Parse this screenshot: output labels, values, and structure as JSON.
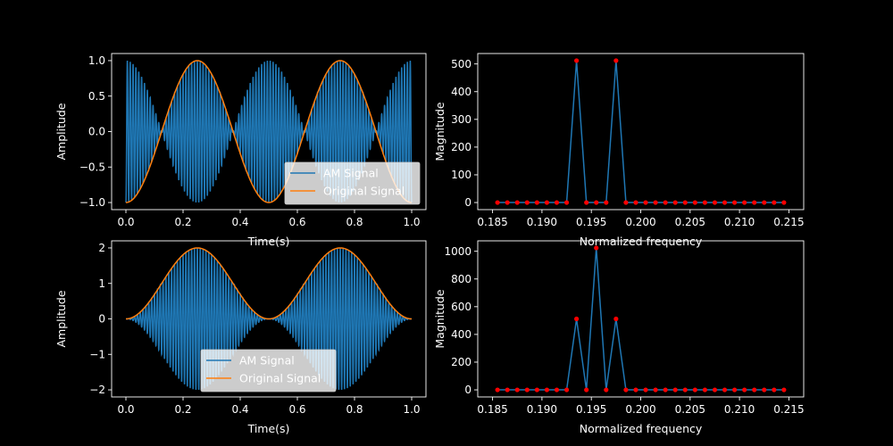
{
  "chart_data": [
    {
      "id": "time-am",
      "type": "line",
      "xlabel": "Time(s)",
      "ylabel": "Amplitude",
      "xlim": [
        -0.05,
        1.05
      ],
      "ylim": [
        -1.1,
        1.1
      ],
      "xticks": [
        0.0,
        0.2,
        0.4,
        0.6,
        0.8,
        1.0
      ],
      "xtick_labels": [
        "0.0",
        "0.2",
        "0.4",
        "0.6",
        "0.8",
        "1.0"
      ],
      "yticks": [
        -1.0,
        -0.5,
        0.0,
        0.5,
        1.0
      ],
      "ytick_labels": [
        "−1.0",
        "−0.5",
        "0.0",
        "0.5",
        "1.0"
      ],
      "legend": {
        "position": "lower-right",
        "entries": [
          "AM Signal",
          "Original Signal"
        ]
      },
      "series": [
        {
          "name": "AM Signal",
          "color": "#1f77b4",
          "description": "cos(2π·100·t)·sin(2π·2·t − π/2) dense carrier, envelope |sin(2π·2·t − π/2)|",
          "envelope_x": [
            0.0,
            0.125,
            0.25,
            0.375,
            0.5,
            0.625,
            0.75,
            0.875,
            1.0
          ],
          "envelope_y": [
            1.0,
            0.0,
            1.0,
            0.0,
            1.0,
            0.0,
            1.0,
            0.0,
            1.0
          ]
        },
        {
          "name": "Original Signal",
          "color": "#ff7f0e",
          "x": [
            0.0,
            0.125,
            0.25,
            0.375,
            0.5,
            0.625,
            0.75,
            0.875,
            1.0
          ],
          "y": [
            -1.0,
            0.0,
            1.0,
            0.0,
            -1.0,
            0.0,
            1.0,
            0.0,
            -1.0
          ]
        }
      ]
    },
    {
      "id": "freq-am",
      "type": "line",
      "xlabel": "Normalized frequency",
      "ylabel": "Magnitude",
      "xlim": [
        0.1835,
        0.2165
      ],
      "ylim": [
        -25.6,
        537.6
      ],
      "xticks": [
        0.185,
        0.19,
        0.195,
        0.2,
        0.205,
        0.21,
        0.215
      ],
      "xtick_labels": [
        "0.185",
        "0.190",
        "0.195",
        "0.200",
        "0.205",
        "0.210",
        "0.215"
      ],
      "yticks": [
        0,
        100,
        200,
        300,
        400,
        500
      ],
      "ytick_labels": [
        "0",
        "100",
        "200",
        "300",
        "400",
        "500"
      ],
      "series": [
        {
          "color": "#1f77b4",
          "marker_color": "#ff0000",
          "x": [
            0.1855,
            0.1865,
            0.1875,
            0.1885,
            0.1895,
            0.1905,
            0.1915,
            0.1925,
            0.1935,
            0.1945,
            0.1955,
            0.1965,
            0.1975,
            0.1985,
            0.1995,
            0.2005,
            0.2015,
            0.2025,
            0.2035,
            0.2045,
            0.2055,
            0.2065,
            0.2075,
            0.2085,
            0.2095,
            0.2105,
            0.2115,
            0.2125,
            0.2135,
            0.2145
          ],
          "y": [
            0,
            0,
            0,
            0,
            0,
            0,
            0,
            0,
            512,
            0,
            0,
            0,
            512,
            0,
            0,
            0,
            0,
            0,
            0,
            0,
            0,
            0,
            0,
            0,
            0,
            0,
            0,
            0,
            0,
            0
          ]
        }
      ]
    },
    {
      "id": "time-am-offset",
      "type": "line",
      "xlabel": "Time(s)",
      "ylabel": "Amplitude",
      "xlim": [
        -0.05,
        1.05
      ],
      "ylim": [
        -2.2,
        2.2
      ],
      "xticks": [
        0.0,
        0.2,
        0.4,
        0.6,
        0.8,
        1.0
      ],
      "xtick_labels": [
        "0.0",
        "0.2",
        "0.4",
        "0.6",
        "0.8",
        "1.0"
      ],
      "yticks": [
        -2,
        -1,
        0,
        1,
        2
      ],
      "ytick_labels": [
        "−2",
        "−1",
        "0",
        "1",
        "2"
      ],
      "legend": {
        "position": "lower-center",
        "entries": [
          "AM Signal",
          "Original Signal"
        ]
      },
      "series": [
        {
          "name": "AM Signal",
          "color": "#1f77b4",
          "description": "cos(2π·100·t)·(1 + sin(2π·2·t − π/2)) dense carrier, envelope 1 + sin(2π·2·t − π/2)",
          "envelope_x": [
            0.0,
            0.125,
            0.25,
            0.375,
            0.5,
            0.625,
            0.75,
            0.875,
            1.0
          ],
          "envelope_y": [
            0.0,
            1.0,
            2.0,
            1.0,
            0.0,
            1.0,
            2.0,
            1.0,
            0.0
          ]
        },
        {
          "name": "Original Signal",
          "color": "#ff7f0e",
          "x": [
            0.0,
            0.125,
            0.25,
            0.375,
            0.5,
            0.625,
            0.75,
            0.875,
            1.0
          ],
          "y": [
            0.0,
            1.0,
            2.0,
            1.0,
            0.0,
            1.0,
            2.0,
            1.0,
            0.0
          ]
        }
      ]
    },
    {
      "id": "freq-am-offset",
      "type": "line",
      "xlabel": "Normalized frequency",
      "ylabel": "Magnitude",
      "xlim": [
        0.1835,
        0.2165
      ],
      "ylim": [
        -51.2,
        1075.2
      ],
      "xticks": [
        0.185,
        0.19,
        0.195,
        0.2,
        0.205,
        0.21,
        0.215
      ],
      "xtick_labels": [
        "0.185",
        "0.190",
        "0.195",
        "0.200",
        "0.205",
        "0.210",
        "0.215"
      ],
      "yticks": [
        0,
        200,
        400,
        600,
        800,
        1000
      ],
      "ytick_labels": [
        "0",
        "200",
        "400",
        "600",
        "800",
        "1000"
      ],
      "series": [
        {
          "color": "#1f77b4",
          "marker_color": "#ff0000",
          "x": [
            0.1855,
            0.1865,
            0.1875,
            0.1885,
            0.1895,
            0.1905,
            0.1915,
            0.1925,
            0.1935,
            0.1945,
            0.1955,
            0.1965,
            0.1975,
            0.1985,
            0.1995,
            0.2005,
            0.2015,
            0.2025,
            0.2035,
            0.2045,
            0.2055,
            0.2065,
            0.2075,
            0.2085,
            0.2095,
            0.2105,
            0.2115,
            0.2125,
            0.2135,
            0.2145
          ],
          "y": [
            0,
            0,
            0,
            0,
            0,
            0,
            0,
            0,
            512,
            0,
            1024,
            0,
            512,
            0,
            0,
            0,
            0,
            0,
            0,
            0,
            0,
            0,
            0,
            0,
            0,
            0,
            0,
            0,
            0,
            0
          ]
        }
      ]
    }
  ],
  "theme": {
    "background": "#000000",
    "axes_color": "#ffffff",
    "text_color": "#ffffff",
    "legend_face": "#ffffff"
  }
}
